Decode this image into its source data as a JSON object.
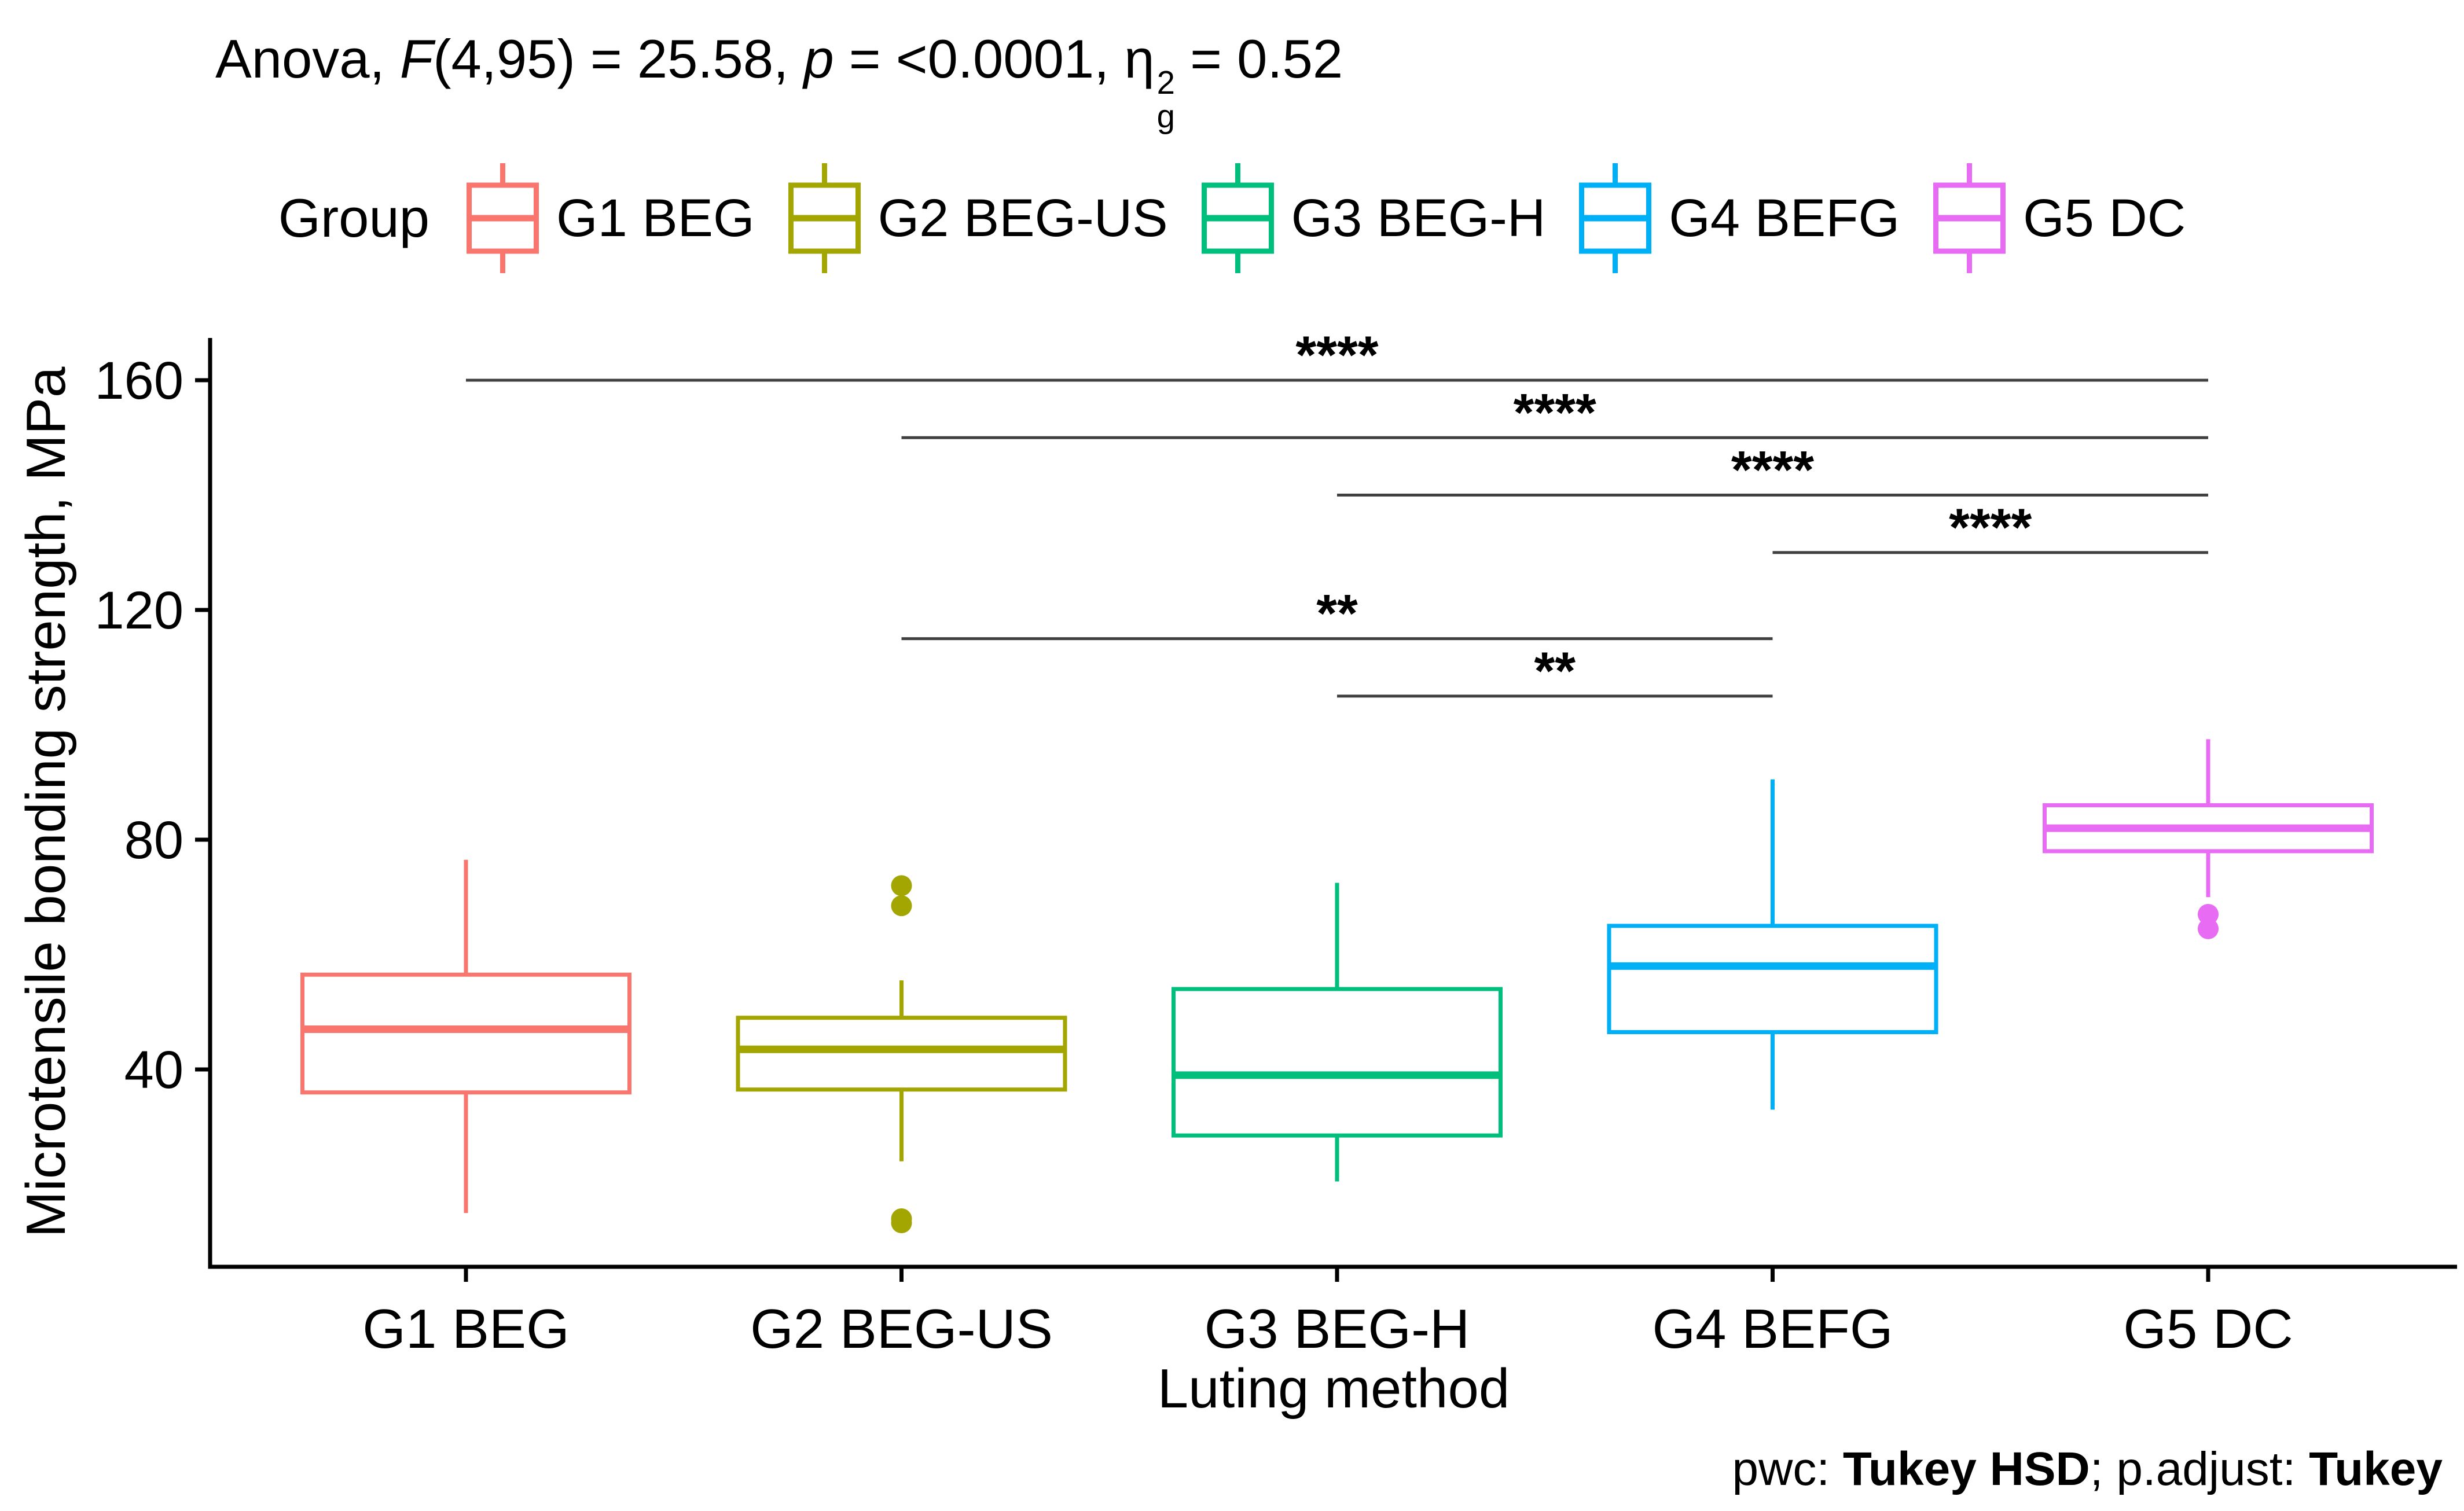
{
  "title": {
    "prefix": "Anova, ",
    "f_symbol": "F",
    "f_stats": "(4,95) = 25.58, ",
    "p_symbol": "p",
    "p_value": " = <0.0001, ",
    "eta_symbol": "η",
    "eta_sup": "2",
    "eta_sub": "g",
    "eta_value": " = 0.52"
  },
  "legend": {
    "title": "Group"
  },
  "caption": {
    "pwc_label": "pwc: ",
    "pwc_value": "Tukey HSD",
    "sep": "; p.adjust: ",
    "adjust_value": "Tukey"
  },
  "chart_data": {
    "type": "box",
    "title": "Anova, F(4,95) = 25.58, p = <0.0001, η²g = 0.52",
    "xlabel": "Luting method",
    "ylabel": "Microtensile bonding strength, MPa",
    "ylim": [
      5,
      168
    ],
    "yticks": [
      40,
      80,
      120,
      160
    ],
    "grid": false,
    "legend_position": "top",
    "categories": [
      "G1 BEG",
      "G2 BEG-US",
      "G3 BEG-H",
      "G4 BEFG",
      "G5 DC"
    ],
    "series": [
      {
        "name": "G1 BEG",
        "color": "#F8766D",
        "stats": {
          "whisker_low": 15,
          "q1": 36,
          "median": 47,
          "q3": 56.5,
          "whisker_high": 76.5,
          "outliers": []
        }
      },
      {
        "name": "G2 BEG-US",
        "color": "#A3A500",
        "stats": {
          "whisker_low": 24,
          "q1": 36.5,
          "median": 43.5,
          "q3": 49,
          "whisker_high": 55.5,
          "outliers": [
            72,
            68.5,
            14,
            13.3
          ]
        }
      },
      {
        "name": "G3 BEG-H",
        "color": "#00BF7D",
        "stats": {
          "whisker_low": 20.5,
          "q1": 28.5,
          "median": 39,
          "q3": 54,
          "whisker_high": 72.5,
          "outliers": []
        }
      },
      {
        "name": "G4 BEFG",
        "color": "#00B0F6",
        "stats": {
          "whisker_low": 33,
          "q1": 46.5,
          "median": 58,
          "q3": 65,
          "whisker_high": 90.5,
          "outliers": []
        }
      },
      {
        "name": "G5 DC",
        "color": "#E76BF3",
        "stats": {
          "whisker_low": 70,
          "q1": 78,
          "median": 82,
          "q3": 86,
          "whisker_high": 97.5,
          "outliers": [
            67,
            64.5
          ]
        }
      }
    ],
    "comparisons": [
      {
        "group1": "G1 BEG",
        "group2": "G5 DC",
        "label": "****",
        "y": 160
      },
      {
        "group1": "G2 BEG-US",
        "group2": "G5 DC",
        "label": "****",
        "y": 150
      },
      {
        "group1": "G3 BEG-H",
        "group2": "G5 DC",
        "label": "****",
        "y": 140
      },
      {
        "group1": "G4 BEFG",
        "group2": "G5 DC",
        "label": "****",
        "y": 130
      },
      {
        "group1": "G2 BEG-US",
        "group2": "G4 BEFG",
        "label": "**",
        "y": 115
      },
      {
        "group1": "G3 BEG-H",
        "group2": "G4 BEFG",
        "label": "**",
        "y": 105
      }
    ]
  }
}
